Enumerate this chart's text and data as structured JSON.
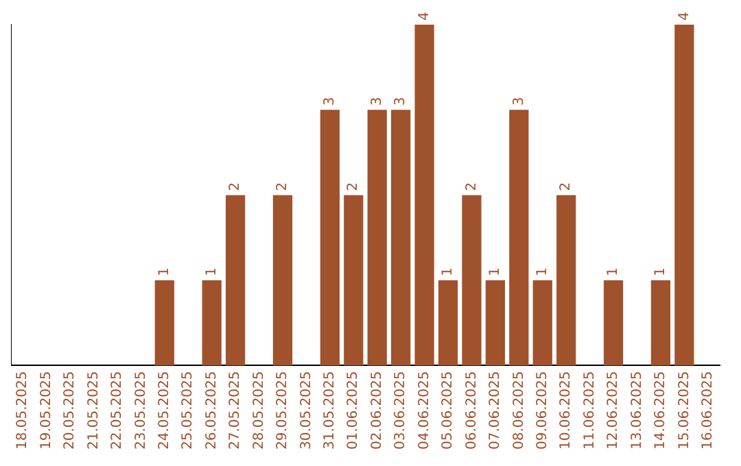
{
  "chart_data": {
    "type": "bar",
    "color": "#a0522d",
    "categories": [
      "18.05.2025",
      "19.05.2025",
      "20.05.2025",
      "21.05.2025",
      "22.05.2025",
      "23.05.2025",
      "24.05.2025",
      "25.05.2025",
      "26.05.2025",
      "27.05.2025",
      "28.05.2025",
      "29.05.2025",
      "30.05.2025",
      "31.05.2025",
      "01.06.2025",
      "02.06.2025",
      "03.06.2025",
      "04.06.2025",
      "05.06.2025",
      "06.06.2025",
      "07.06.2025",
      "08.06.2025",
      "09.06.2025",
      "10.06.2025",
      "11.06.2025",
      "12.06.2025",
      "13.06.2025",
      "14.06.2025",
      "15.06.2025",
      "16.06.2025"
    ],
    "values": [
      0,
      0,
      0,
      0,
      0,
      0,
      1,
      0,
      1,
      2,
      0,
      2,
      0,
      3,
      2,
      3,
      3,
      4,
      1,
      2,
      1,
      3,
      1,
      2,
      0,
      1,
      0,
      1,
      4,
      0
    ],
    "value_labels": [
      null,
      null,
      null,
      null,
      null,
      null,
      "1",
      null,
      "1",
      "2",
      null,
      "2",
      null,
      "3",
      "2",
      "3",
      "3",
      "4",
      "1",
      "2",
      "1",
      "3",
      "1",
      "2",
      null,
      "1",
      null,
      "1",
      "4",
      null
    ],
    "ylim": [
      0,
      4
    ],
    "tick_labels": "x",
    "grid": false,
    "legend": false
  }
}
